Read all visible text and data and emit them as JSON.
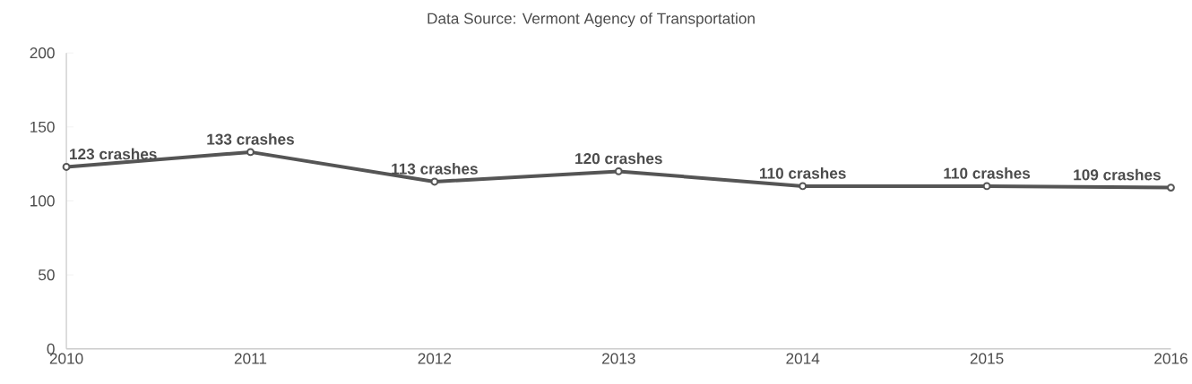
{
  "chart_data": {
    "type": "line",
    "title": "Data Source: Vermont Agency of Transportation",
    "categories": [
      "2010",
      "2011",
      "2012",
      "2013",
      "2014",
      "2015",
      "2016"
    ],
    "values": [
      123,
      133,
      113,
      120,
      110,
      110,
      109
    ],
    "value_labels": [
      "123 crashes",
      "133 crashes",
      "113 crashes",
      "120 crashes",
      "110 crashes",
      "110 crashes",
      "109 crashes"
    ],
    "color": "#555555",
    "marker": "circle",
    "line_style": "solid",
    "ylim": [
      0,
      200
    ],
    "yticks": [
      0,
      50,
      100,
      150,
      200
    ],
    "grid": false
  }
}
